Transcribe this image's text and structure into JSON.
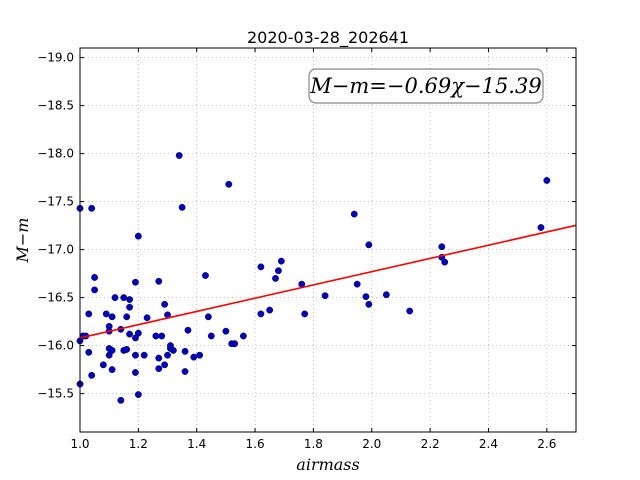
{
  "chart_data": {
    "type": "scatter",
    "title": "2020-03-28_202641",
    "xlabel": "airmass",
    "ylabel": "M−m",
    "xlim": [
      1.0,
      2.7
    ],
    "ylim": [
      -19.1,
      -15.1
    ],
    "y_inverted": true,
    "grid": true,
    "x_ticks": [
      1.0,
      1.2,
      1.4,
      1.6,
      1.8,
      2.0,
      2.2,
      2.4,
      2.6
    ],
    "x_tick_labels": [
      "1.0",
      "1.2",
      "1.4",
      "1.6",
      "1.8",
      "2.0",
      "2.2",
      "2.4",
      "2.6"
    ],
    "y_ticks": [
      -15.5,
      -16.0,
      -16.5,
      -17.0,
      -17.5,
      -18.0,
      -18.5,
      -19.0
    ],
    "y_tick_labels": [
      "−15.5",
      "−16.0",
      "−16.5",
      "−17.0",
      "−17.5",
      "−18.0",
      "−18.5",
      "−19.0"
    ],
    "annotation": "M−m=−0.69χ−15.39",
    "fit": {
      "slope": -0.69,
      "intercept": -15.39,
      "color": "#ff0000"
    },
    "point_color": "#0000cc",
    "points": [
      [
        1.0,
        -15.6
      ],
      [
        1.0,
        -16.05
      ],
      [
        1.01,
        -16.1
      ],
      [
        1.02,
        -16.1
      ],
      [
        1.0,
        -17.43
      ],
      [
        1.03,
        -16.33
      ],
      [
        1.03,
        -15.93
      ],
      [
        1.04,
        -15.69
      ],
      [
        1.04,
        -17.43
      ],
      [
        1.05,
        -16.58
      ],
      [
        1.05,
        -16.71
      ],
      [
        1.08,
        -15.8
      ],
      [
        1.09,
        -16.33
      ],
      [
        1.1,
        -15.9
      ],
      [
        1.1,
        -15.97
      ],
      [
        1.1,
        -16.2
      ],
      [
        1.1,
        -16.15
      ],
      [
        1.11,
        -15.95
      ],
      [
        1.11,
        -15.75
      ],
      [
        1.11,
        -16.3
      ],
      [
        1.12,
        -16.5
      ],
      [
        1.14,
        -16.17
      ],
      [
        1.14,
        -15.43
      ],
      [
        1.15,
        -16.5
      ],
      [
        1.15,
        -15.95
      ],
      [
        1.16,
        -16.3
      ],
      [
        1.16,
        -15.96
      ],
      [
        1.17,
        -16.48
      ],
      [
        1.17,
        -16.4
      ],
      [
        1.17,
        -16.12
      ],
      [
        1.19,
        -15.72
      ],
      [
        1.19,
        -16.08
      ],
      [
        1.19,
        -15.9
      ],
      [
        1.19,
        -16.66
      ],
      [
        1.2,
        -15.49
      ],
      [
        1.2,
        -16.13
      ],
      [
        1.2,
        -17.14
      ],
      [
        1.22,
        -15.9
      ],
      [
        1.23,
        -16.29
      ],
      [
        1.26,
        -16.1
      ],
      [
        1.27,
        -15.76
      ],
      [
        1.27,
        -15.87
      ],
      [
        1.27,
        -16.67
      ],
      [
        1.28,
        -16.1
      ],
      [
        1.29,
        -15.8
      ],
      [
        1.29,
        -16.43
      ],
      [
        1.3,
        -16.32
      ],
      [
        1.3,
        -15.9
      ],
      [
        1.31,
        -15.97
      ],
      [
        1.31,
        -16.0
      ],
      [
        1.32,
        -15.95
      ],
      [
        1.34,
        -17.98
      ],
      [
        1.35,
        -17.44
      ],
      [
        1.36,
        -15.94
      ],
      [
        1.36,
        -15.73
      ],
      [
        1.37,
        -16.16
      ],
      [
        1.39,
        -15.88
      ],
      [
        1.41,
        -15.9
      ],
      [
        1.43,
        -16.73
      ],
      [
        1.44,
        -16.3
      ],
      [
        1.45,
        -16.1
      ],
      [
        1.5,
        -16.15
      ],
      [
        1.51,
        -17.68
      ],
      [
        1.52,
        -16.02
      ],
      [
        1.53,
        -16.02
      ],
      [
        1.56,
        -16.1
      ],
      [
        1.62,
        -16.82
      ],
      [
        1.62,
        -16.33
      ],
      [
        1.65,
        -16.37
      ],
      [
        1.67,
        -16.7
      ],
      [
        1.68,
        -16.78
      ],
      [
        1.69,
        -16.88
      ],
      [
        1.76,
        -16.64
      ],
      [
        1.77,
        -16.33
      ],
      [
        1.84,
        -16.52
      ],
      [
        1.94,
        -17.37
      ],
      [
        1.95,
        -16.64
      ],
      [
        1.98,
        -16.51
      ],
      [
        1.99,
        -16.43
      ],
      [
        1.99,
        -17.05
      ],
      [
        2.05,
        -16.53
      ],
      [
        2.13,
        -16.36
      ],
      [
        2.24,
        -17.03
      ],
      [
        2.24,
        -16.92
      ],
      [
        2.25,
        -16.87
      ],
      [
        2.58,
        -17.23
      ],
      [
        2.6,
        -17.72
      ]
    ]
  }
}
